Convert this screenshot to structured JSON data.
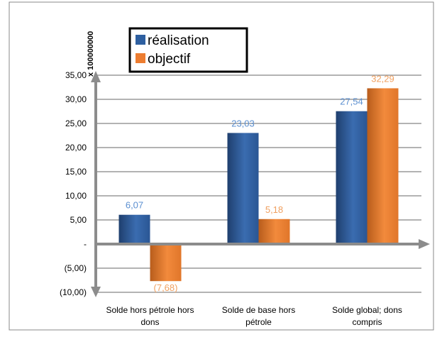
{
  "chart_data": {
    "type": "bar",
    "unit_label": "x 100000000",
    "categories": [
      [
        "Solde hors pétrole hors",
        "dons"
      ],
      [
        "Solde de base hors",
        "pétrole"
      ],
      [
        "Solde global; dons",
        "compris"
      ]
    ],
    "series": [
      {
        "name": "réalisation",
        "color": "#2e5fa0",
        "label_color": "#5b8fd0",
        "values": [
          6.07,
          23.03,
          27.54
        ],
        "labels": [
          "6,07",
          "23,03",
          "27,54"
        ]
      },
      {
        "name": "objectif",
        "color": "#ed7d31",
        "label_color": "#f0a060",
        "values": [
          -7.68,
          5.18,
          32.29
        ],
        "labels": [
          "(7,68)",
          "5,18",
          "32,29"
        ]
      }
    ],
    "yticks": [
      35,
      30,
      25,
      20,
      15,
      10,
      5,
      0,
      -5,
      -10
    ],
    "ytick_labels": [
      "35,00",
      "30,00",
      "25,00",
      "20,00",
      "15,00",
      "10,00",
      "5,00",
      "-",
      "(5,00)",
      "(10,00)"
    ],
    "ylim": [
      -10,
      35
    ],
    "grid": true,
    "legend_position": "top-left"
  }
}
